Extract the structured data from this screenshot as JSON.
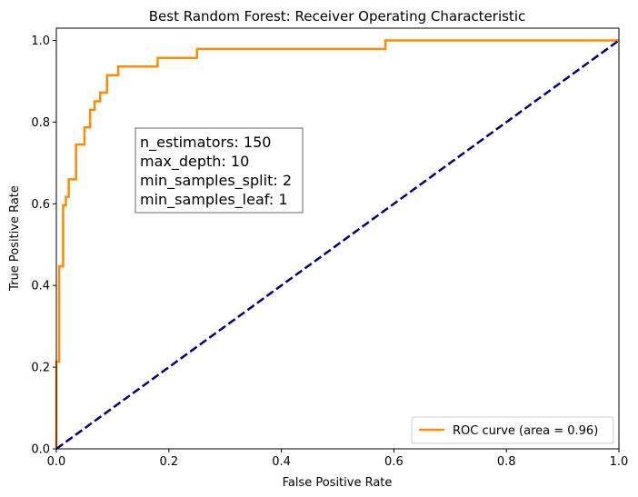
{
  "chart_data": {
    "type": "line",
    "title": "Best Random Forest: Receiver Operating Characteristic",
    "xlabel": "False Positive Rate",
    "ylabel": "True Positive Rate",
    "xlim": [
      0.0,
      1.0
    ],
    "ylim": [
      0.0,
      1.03
    ],
    "xticks": [
      "0.0",
      "0.2",
      "0.4",
      "0.6",
      "0.8",
      "1.0"
    ],
    "yticks": [
      "0.0",
      "0.2",
      "0.4",
      "0.6",
      "0.8",
      "1.0"
    ],
    "grid": false,
    "legend_position": "lower-right",
    "series": [
      {
        "name": "ROC curve (area = 0.96)",
        "color": "#ff8c00",
        "style": "solid",
        "x": [
          0.0,
          0.0,
          0.005,
          0.005,
          0.012,
          0.012,
          0.017,
          0.017,
          0.022,
          0.022,
          0.035,
          0.035,
          0.05,
          0.05,
          0.06,
          0.06,
          0.068,
          0.068,
          0.078,
          0.078,
          0.09,
          0.09,
          0.11,
          0.11,
          0.18,
          0.18,
          0.25,
          0.25,
          0.585,
          0.585,
          1.0
        ],
        "y": [
          0.0,
          0.213,
          0.213,
          0.447,
          0.447,
          0.596,
          0.596,
          0.617,
          0.617,
          0.66,
          0.66,
          0.745,
          0.745,
          0.787,
          0.787,
          0.83,
          0.83,
          0.851,
          0.851,
          0.872,
          0.872,
          0.915,
          0.915,
          0.936,
          0.936,
          0.957,
          0.957,
          0.979,
          0.979,
          1.0,
          1.0
        ]
      },
      {
        "name": "",
        "color": "#000080",
        "style": "dashed",
        "x": [
          0.0,
          1.0
        ],
        "y": [
          0.0,
          1.0
        ]
      }
    ],
    "annotation": {
      "lines": [
        "n_estimators: 150",
        "max_depth: 10",
        "min_samples_split: 2",
        "min_samples_leaf: 1"
      ]
    }
  }
}
